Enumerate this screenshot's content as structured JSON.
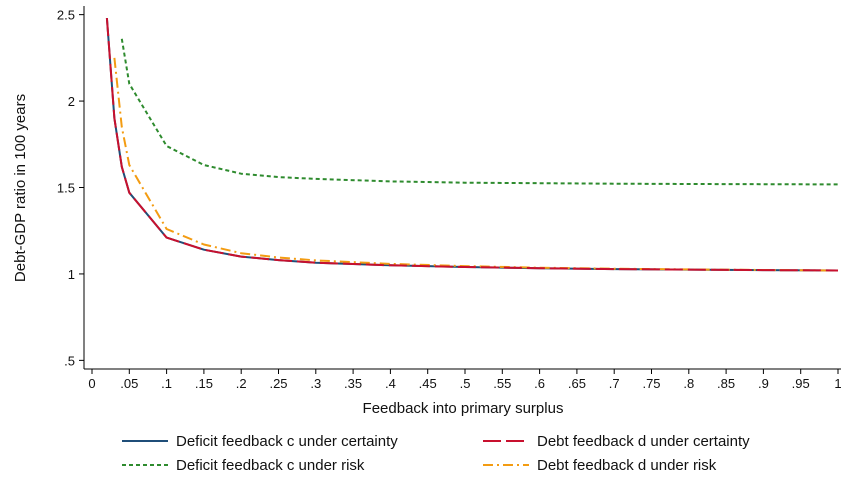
{
  "chart_data": {
    "type": "line",
    "xlabel": "Feedback into primary surplus",
    "ylabel": "Debt-GDP ratio in 100 years",
    "xlim": [
      0,
      1
    ],
    "ylim": [
      0.45,
      2.55
    ],
    "grid": false,
    "legend_position": "bottom",
    "x_ticks": [
      {
        "value": 0,
        "label": "0"
      },
      {
        "value": 0.05,
        "label": ".05"
      },
      {
        "value": 0.1,
        "label": ".1"
      },
      {
        "value": 0.15,
        "label": ".15"
      },
      {
        "value": 0.2,
        "label": ".2"
      },
      {
        "value": 0.25,
        "label": ".25"
      },
      {
        "value": 0.3,
        "label": ".3"
      },
      {
        "value": 0.35,
        "label": ".35"
      },
      {
        "value": 0.4,
        "label": ".4"
      },
      {
        "value": 0.45,
        "label": ".45"
      },
      {
        "value": 0.5,
        "label": ".5"
      },
      {
        "value": 0.55,
        "label": ".55"
      },
      {
        "value": 0.6,
        "label": ".6"
      },
      {
        "value": 0.65,
        "label": ".65"
      },
      {
        "value": 0.7,
        "label": ".7"
      },
      {
        "value": 0.75,
        "label": ".75"
      },
      {
        "value": 0.8,
        "label": ".8"
      },
      {
        "value": 0.85,
        "label": ".85"
      },
      {
        "value": 0.9,
        "label": ".9"
      },
      {
        "value": 0.95,
        "label": ".95"
      },
      {
        "value": 1,
        "label": "1"
      }
    ],
    "y_ticks": [
      {
        "value": 0.5,
        "label": ".5"
      },
      {
        "value": 1,
        "label": "1"
      },
      {
        "value": 1.5,
        "label": "1.5"
      },
      {
        "value": 2,
        "label": "2"
      },
      {
        "value": 2.5,
        "label": "2.5"
      }
    ],
    "series": [
      {
        "name": "Deficit feedback c under certainty",
        "color": "#1f4e79",
        "dash": "solid",
        "x": [
          0.02,
          0.03,
          0.04,
          0.05,
          0.1,
          0.15,
          0.2,
          0.25,
          0.3,
          0.4,
          0.5,
          0.6,
          0.7,
          0.8,
          0.9,
          1.0
        ],
        "y": [
          2.48,
          1.9,
          1.62,
          1.47,
          1.21,
          1.14,
          1.1,
          1.08,
          1.065,
          1.05,
          1.04,
          1.033,
          1.028,
          1.025,
          1.022,
          1.02
        ]
      },
      {
        "name": "Debt feedback d under certainty",
        "color": "#c8102e",
        "dash": "long",
        "x": [
          0.02,
          0.03,
          0.04,
          0.05,
          0.1,
          0.15,
          0.2,
          0.25,
          0.3,
          0.4,
          0.5,
          0.6,
          0.7,
          0.8,
          0.9,
          1.0
        ],
        "y": [
          2.48,
          1.9,
          1.62,
          1.47,
          1.21,
          1.14,
          1.1,
          1.08,
          1.065,
          1.05,
          1.04,
          1.033,
          1.028,
          1.025,
          1.022,
          1.02
        ]
      },
      {
        "name": "Deficit feedback c under risk",
        "color": "#2e8b2e",
        "dash": "short",
        "x": [
          0.04,
          0.05,
          0.1,
          0.15,
          0.2,
          0.25,
          0.3,
          0.4,
          0.5,
          0.6,
          0.7,
          0.8,
          0.9,
          1.0
        ],
        "y": [
          2.36,
          2.1,
          1.74,
          1.63,
          1.58,
          1.56,
          1.55,
          1.535,
          1.528,
          1.525,
          1.522,
          1.52,
          1.519,
          1.518
        ]
      },
      {
        "name": "Debt feedback d under risk",
        "color": "#f39c12",
        "dash": "dashdot",
        "x": [
          0.03,
          0.04,
          0.05,
          0.1,
          0.15,
          0.2,
          0.25,
          0.3,
          0.4,
          0.5,
          0.6,
          0.7,
          0.8,
          0.9,
          1.0
        ],
        "y": [
          2.25,
          1.85,
          1.63,
          1.26,
          1.17,
          1.12,
          1.095,
          1.078,
          1.058,
          1.045,
          1.036,
          1.03,
          1.026,
          1.023,
          1.02
        ]
      }
    ]
  }
}
